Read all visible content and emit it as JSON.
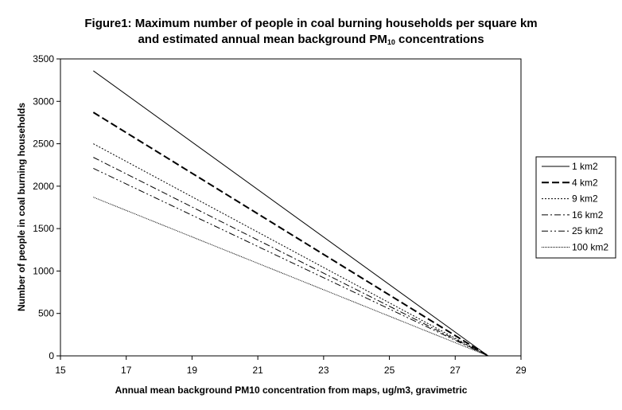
{
  "title": {
    "line1": "Figure1: Maximum number of people in coal burning households per square km",
    "line2_prefix": "and estimated annual mean background PM",
    "line2_sub": "10",
    "line2_suffix": " concentrations"
  },
  "chart_data": {
    "type": "line",
    "xlabel": "Annual mean background PM10 concentration from maps, ug/m3, gravimetric",
    "ylabel": "Number of people in coal burning households",
    "xlim": [
      15,
      29
    ],
    "ylim": [
      0,
      3500
    ],
    "xticks": [
      15,
      17,
      19,
      21,
      23,
      25,
      27,
      29
    ],
    "yticks": [
      0,
      500,
      1000,
      1500,
      2000,
      2500,
      3000,
      3500
    ],
    "grid": false,
    "legend_position": "right",
    "series": [
      {
        "name": "1 km2",
        "dash": "",
        "width": 1,
        "x": [
          16,
          28
        ],
        "y": [
          3360,
          0
        ]
      },
      {
        "name": "4 km2",
        "dash": "9,4",
        "width": 2,
        "x": [
          16,
          28
        ],
        "y": [
          2870,
          0
        ]
      },
      {
        "name": "9 km2",
        "dash": "2,2",
        "width": 1,
        "x": [
          16,
          28
        ],
        "y": [
          2500,
          0
        ]
      },
      {
        "name": "16 km2",
        "dash": "8,3,2,3",
        "width": 1,
        "x": [
          16,
          28
        ],
        "y": [
          2340,
          0
        ]
      },
      {
        "name": "25 km2",
        "dash": "8,3,2,3,2,3",
        "width": 1,
        "x": [
          16,
          28
        ],
        "y": [
          2210,
          0
        ]
      },
      {
        "name": "100 km2",
        "dash": "1,1",
        "width": 1,
        "x": [
          16,
          28
        ],
        "y": [
          1870,
          0
        ]
      }
    ]
  }
}
